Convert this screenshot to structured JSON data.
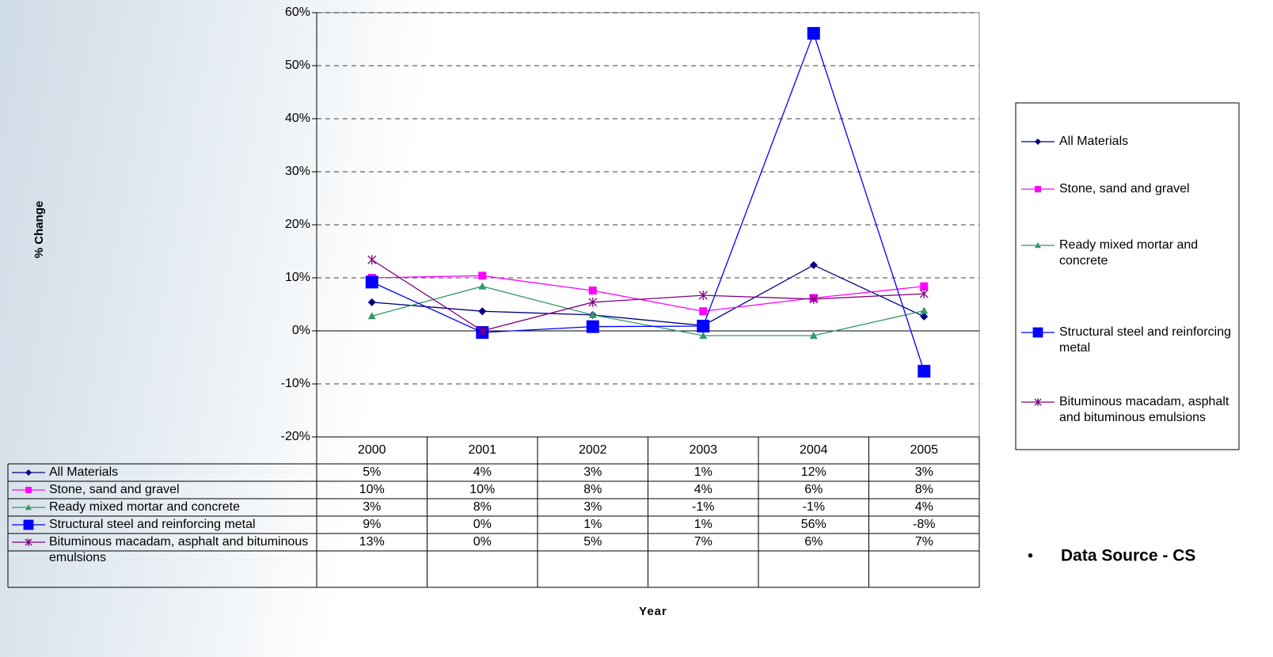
{
  "chart_data": {
    "type": "line",
    "categories": [
      "2000",
      "2001",
      "2002",
      "2003",
      "2004",
      "2005"
    ],
    "y_label": "% Change",
    "x_label": "Year",
    "ylim": [
      -20,
      60
    ],
    "yticks": [
      {
        "value": -20,
        "label": "-20%"
      },
      {
        "value": -10,
        "label": "-10%"
      },
      {
        "value": 0,
        "label": "0%"
      },
      {
        "value": 10,
        "label": "10%"
      },
      {
        "value": 20,
        "label": "20%"
      },
      {
        "value": 30,
        "label": "30%"
      },
      {
        "value": 40,
        "label": "40%"
      },
      {
        "value": 50,
        "label": "50%"
      },
      {
        "value": 60,
        "label": "60%"
      }
    ],
    "grid": true,
    "legend": "right",
    "series": [
      {
        "name": "All Materials",
        "color": "#000080",
        "marker": "diamond",
        "values": [
          5.4,
          3.7,
          3.0,
          1.0,
          12.4,
          2.7
        ],
        "value_labels": [
          "5%",
          "4%",
          "3%",
          "1%",
          "12%",
          "3%"
        ]
      },
      {
        "name": "Stone, sand and gravel",
        "color": "#ff00ff",
        "marker": "square",
        "values": [
          10.0,
          10.4,
          7.6,
          3.7,
          6.2,
          8.4
        ],
        "value_labels": [
          "10%",
          "10%",
          "8%",
          "4%",
          "6%",
          "8%"
        ]
      },
      {
        "name": "Ready mixed mortar and concrete",
        "color": "#339966",
        "marker": "triangle",
        "values": [
          2.8,
          8.4,
          3.0,
          -0.9,
          -0.9,
          3.8
        ],
        "value_labels": [
          "3%",
          "8%",
          "3%",
          "-1%",
          "-1%",
          "4%"
        ]
      },
      {
        "name": "Structural steel and reinforcing metal",
        "color": "#0000ff",
        "marker": "large-square",
        "values": [
          9.2,
          -0.3,
          0.8,
          0.9,
          56.1,
          -7.6
        ],
        "value_labels": [
          "9%",
          "0%",
          "1%",
          "1%",
          "56%",
          "-8%"
        ]
      },
      {
        "name": "Bituminous macadam, asphalt and bituminous emulsions",
        "color": "#800080",
        "marker": "star",
        "values": [
          13.4,
          0.0,
          5.4,
          6.7,
          6.0,
          7.0
        ],
        "value_labels": [
          "13%",
          "0%",
          "5%",
          "7%",
          "6%",
          "7%"
        ]
      }
    ],
    "note": "Data Source - CS"
  }
}
